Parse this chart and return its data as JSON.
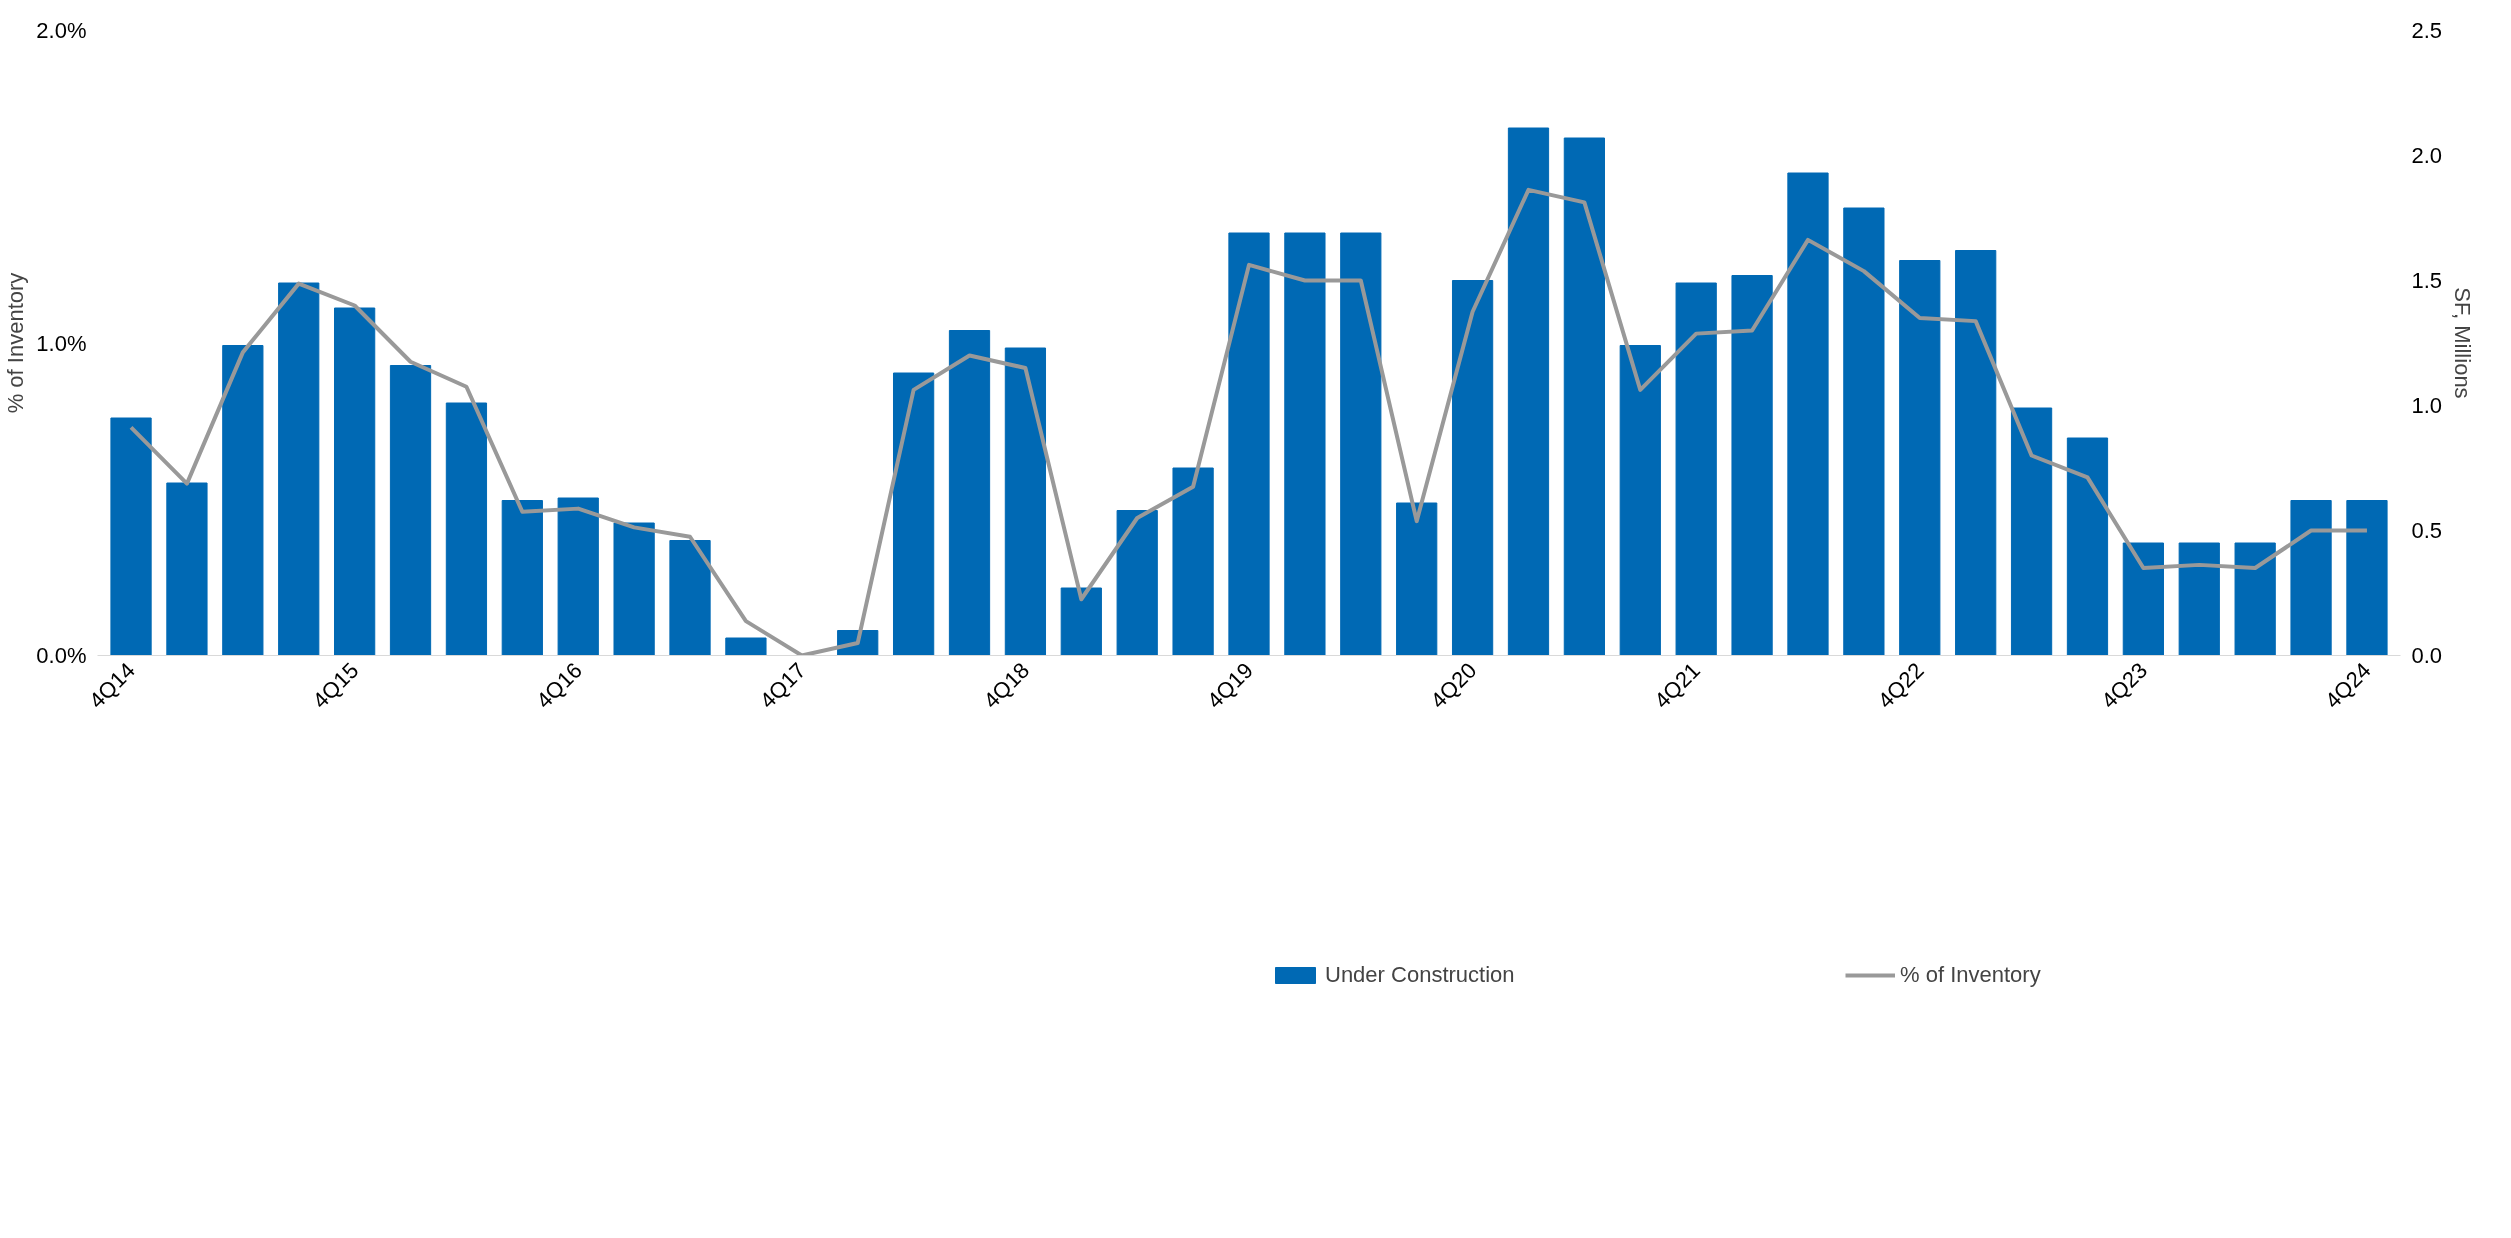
{
  "chart_data": {
    "type": "bar",
    "ylabel": "% of Inventory",
    "y2label": "SF, Millions",
    "categories": [
      "4Q14",
      null,
      null,
      null,
      "4Q15",
      null,
      null,
      null,
      "4Q16",
      null,
      null,
      null,
      "4Q17",
      null,
      null,
      null,
      "4Q18",
      null,
      null,
      null,
      "4Q19",
      null,
      null,
      null,
      "4Q20",
      null,
      null,
      null,
      "4Q21",
      null,
      null,
      null,
      "4Q22",
      null,
      null,
      null,
      "4Q23",
      null,
      null,
      null,
      "4Q24"
    ],
    "series": [
      {
        "name": "Under Construction",
        "axis": "y2",
        "color": "#0069b4",
        "values": [
          0.95,
          0.69,
          1.24,
          1.49,
          1.39,
          1.16,
          1.01,
          0.62,
          0.63,
          0.53,
          0.46,
          0.07,
          0,
          0.1,
          1.13,
          1.3,
          1.23,
          0.27,
          0.58,
          0.75,
          1.69,
          1.69,
          1.69,
          0.61,
          1.5,
          2.11,
          2.07,
          1.24,
          1.49,
          1.52,
          1.93,
          1.79,
          1.58,
          1.62,
          0.99,
          0.87,
          0.45,
          0.45,
          0.45,
          0.62,
          0.62
        ]
      },
      {
        "name": "% of Inventory",
        "type": "line",
        "color": "#999999",
        "values": [
          0.73,
          0.55,
          0.97,
          1.19,
          1.12,
          0.94,
          0.86,
          0.46,
          0.47,
          0.41,
          0.38,
          0.11,
          0.0,
          0.04,
          0.85,
          0.96,
          0.92,
          0.18,
          0.44,
          0.54,
          1.25,
          1.2,
          1.2,
          0.43,
          1.1,
          1.49,
          1.45,
          0.85,
          1.03,
          1.04,
          1.33,
          1.23,
          1.08,
          1.07,
          0.64,
          0.57,
          0.28,
          0.29,
          0.28,
          0.4,
          0.4
        ]
      }
    ],
    "ylim": [
      0,
      2
    ],
    "yticks": [
      {
        "value": 0,
        "label": "0.0%"
      },
      {
        "value": 1,
        "label": "1.0%"
      },
      {
        "value": 2,
        "label": "2.0%"
      }
    ],
    "y2lim": [
      0,
      2.5
    ],
    "y2ticks": [
      {
        "value": 0,
        "label": "0.0"
      },
      {
        "value": 0.5,
        "label": "0.5"
      },
      {
        "value": 1,
        "label": "1.0"
      },
      {
        "value": 1.5,
        "label": "1.5"
      },
      {
        "value": 2,
        "label": "2.0"
      },
      {
        "value": 2.5,
        "label": "2.5"
      }
    ],
    "grid": false,
    "legend": "bottom",
    "line_style": "solid",
    "marker": "none"
  }
}
